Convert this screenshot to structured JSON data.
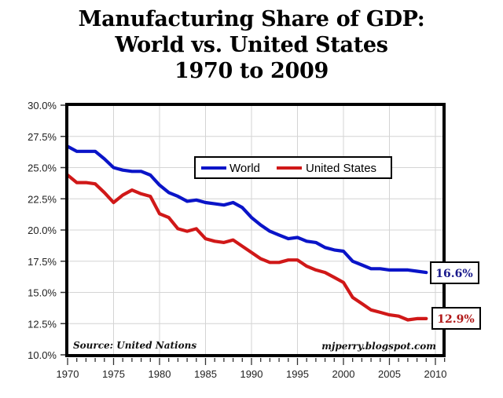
{
  "chart_data": {
    "type": "line",
    "title": [
      "Manufacturing Share of GDP:",
      "World vs. United States",
      "1970 to 2009"
    ],
    "xlabel": "",
    "ylabel": "",
    "x": [
      1970,
      1971,
      1972,
      1973,
      1974,
      1975,
      1976,
      1977,
      1978,
      1979,
      1980,
      1981,
      1982,
      1983,
      1984,
      1985,
      1986,
      1987,
      1988,
      1989,
      1990,
      1991,
      1992,
      1993,
      1994,
      1995,
      1996,
      1997,
      1998,
      1999,
      2000,
      2001,
      2002,
      2003,
      2004,
      2005,
      2006,
      2007,
      2008,
      2009
    ],
    "series": [
      {
        "name": "World",
        "color": "#0a14c8",
        "values": [
          26.7,
          26.3,
          26.3,
          26.3,
          25.7,
          25.0,
          24.8,
          24.7,
          24.7,
          24.4,
          23.6,
          23.0,
          22.7,
          22.3,
          22.4,
          22.2,
          22.1,
          22.0,
          22.2,
          21.8,
          21.0,
          20.4,
          19.9,
          19.6,
          19.3,
          19.4,
          19.1,
          19.0,
          18.6,
          18.4,
          18.3,
          17.5,
          17.2,
          16.9,
          16.9,
          16.8,
          16.8,
          16.8,
          16.7,
          16.6
        ]
      },
      {
        "name": "United States",
        "color": "#d01818",
        "values": [
          24.4,
          23.8,
          23.8,
          23.7,
          23.0,
          22.2,
          22.8,
          23.2,
          22.9,
          22.7,
          21.3,
          21.0,
          20.1,
          19.9,
          20.1,
          19.3,
          19.1,
          19.0,
          19.2,
          18.7,
          18.2,
          17.7,
          17.4,
          17.4,
          17.6,
          17.6,
          17.1,
          16.8,
          16.6,
          16.2,
          15.8,
          14.6,
          14.1,
          13.6,
          13.4,
          13.2,
          13.1,
          12.8,
          12.9,
          12.9
        ]
      }
    ],
    "xlim": [
      1970,
      2011
    ],
    "ylim": [
      10.0,
      30.0
    ],
    "xticks": [
      1970,
      1975,
      1980,
      1985,
      1990,
      1995,
      2000,
      2005,
      2010
    ],
    "xtick_labels": [
      "1970",
      "1975",
      "1980",
      "1985",
      "1990",
      "1995",
      "2000",
      "2005",
      "2010"
    ],
    "yticks": [
      10.0,
      12.5,
      15.0,
      17.5,
      20.0,
      22.5,
      25.0,
      27.5,
      30.0
    ],
    "ytick_labels": [
      "10.0%",
      "12.5%",
      "15.0%",
      "17.5%",
      "20.0%",
      "22.5%",
      "25.0%",
      "27.5%",
      "30.0%"
    ],
    "grid": true,
    "legend": {
      "placement": "top-center",
      "entries": [
        "World",
        "United States"
      ]
    },
    "annotations": {
      "source": "Source: United Nations",
      "credit": "mjperry.blogspot.com",
      "callouts": [
        {
          "series": "World",
          "text": "16.6%",
          "color": "#1a1a8c"
        },
        {
          "series": "United States",
          "text": "12.9%",
          "color": "#b01818"
        }
      ]
    }
  }
}
